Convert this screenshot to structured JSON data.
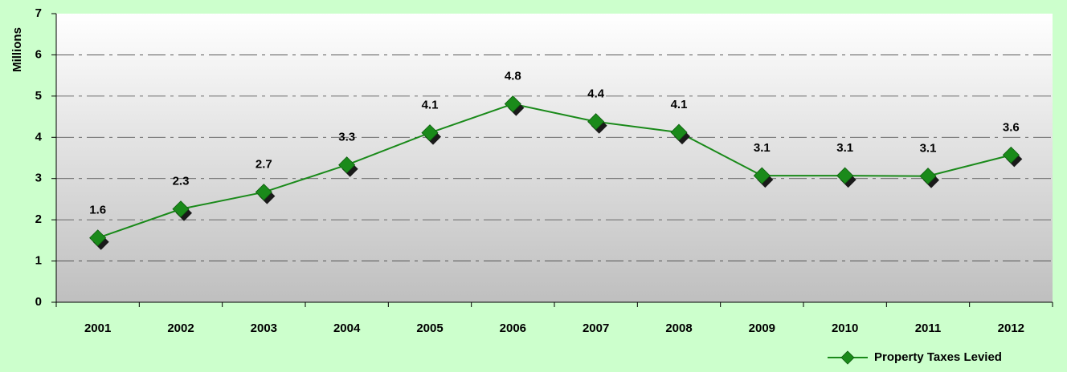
{
  "chart_data": {
    "type": "line",
    "y_label": "Millions",
    "categories": [
      "2001",
      "2002",
      "2003",
      "2004",
      "2005",
      "2006",
      "2007",
      "2008",
      "2009",
      "2010",
      "2011",
      "2012"
    ],
    "series": [
      {
        "name": "Property Taxes Levied",
        "color": "#1a8a1a",
        "values": [
          1.56,
          2.26,
          2.67,
          3.33,
          4.11,
          4.81,
          4.38,
          4.12,
          3.07,
          3.07,
          3.06,
          3.57
        ],
        "value_labels": [
          "1.6",
          "2.3",
          "2.7",
          "3.3",
          "4.1",
          "4.8",
          "4.4",
          "4.1",
          "3.1",
          "3.1",
          "3.1",
          "3.6"
        ]
      }
    ],
    "ylim": [
      0,
      7
    ],
    "yticks": [
      0,
      1,
      2,
      3,
      4,
      5,
      6,
      7
    ],
    "grid": true,
    "legend": "bottom-right"
  }
}
